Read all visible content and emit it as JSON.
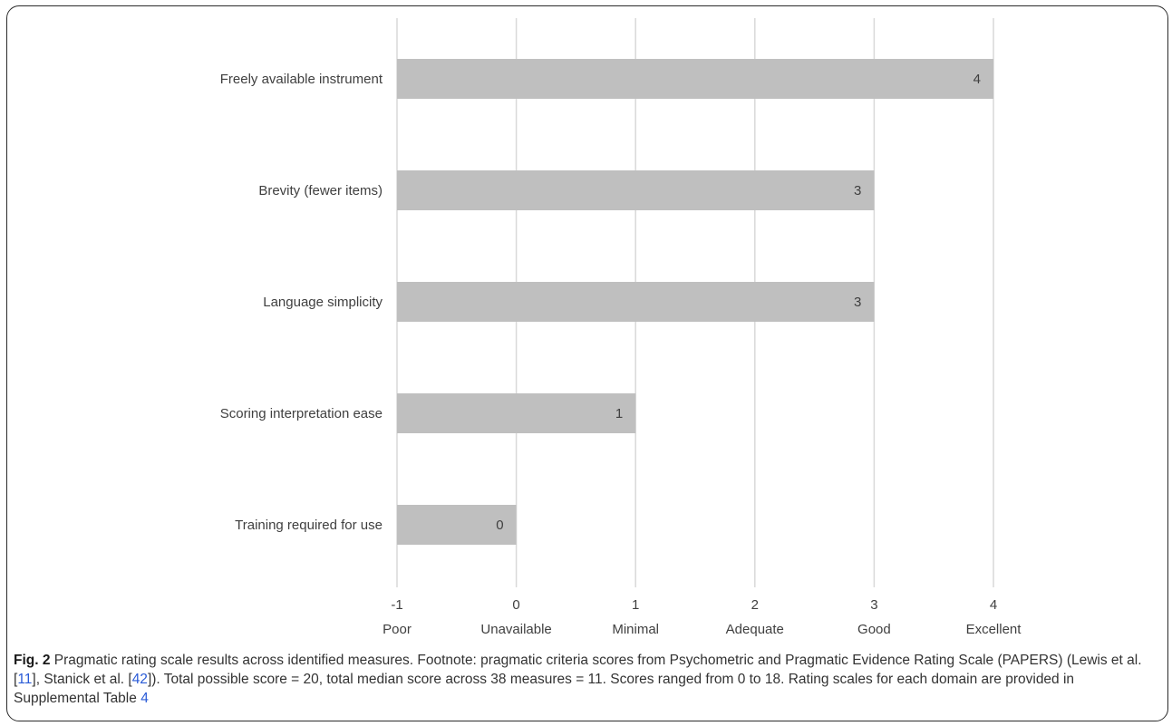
{
  "chart_data": {
    "type": "bar",
    "orientation": "horizontal",
    "categories": [
      "Freely available instrument",
      "Brevity (fewer items)",
      "Language simplicity",
      "Scoring interpretation ease",
      "Training required for use"
    ],
    "values": [
      4,
      3,
      3,
      1,
      0
    ],
    "xlim": [
      -1,
      4
    ],
    "x_ticks": [
      {
        "value": -1,
        "label": "-1",
        "word": "Poor"
      },
      {
        "value": 0,
        "label": "0",
        "word": "Unavailable"
      },
      {
        "value": 1,
        "label": "1",
        "word": "Minimal"
      },
      {
        "value": 2,
        "label": "2",
        "word": "Adequate"
      },
      {
        "value": 3,
        "label": "3",
        "word": "Good"
      },
      {
        "value": 4,
        "label": "4",
        "word": "Excellent"
      }
    ],
    "grid": true,
    "bar_color": "#bfbfbf",
    "grid_color": "#d9d9d9"
  },
  "caption": {
    "fig_label": "Fig. 2",
    "text_1": " Pragmatic rating scale results across identified measures. Footnote: pragmatic criteria scores from Psychometric and Pragmatic Evidence Rating Scale (PAPERS) (Lewis et al. [",
    "ref_1": "11",
    "text_2": "], Stanick et al. [",
    "ref_2": "42",
    "text_3": "]). Total possible score = 20, total median score across 38 measures = 11. Scores ranged from 0 to 18. Rating scales for each domain are provided in Supplemental Table ",
    "ref_3": "4"
  }
}
